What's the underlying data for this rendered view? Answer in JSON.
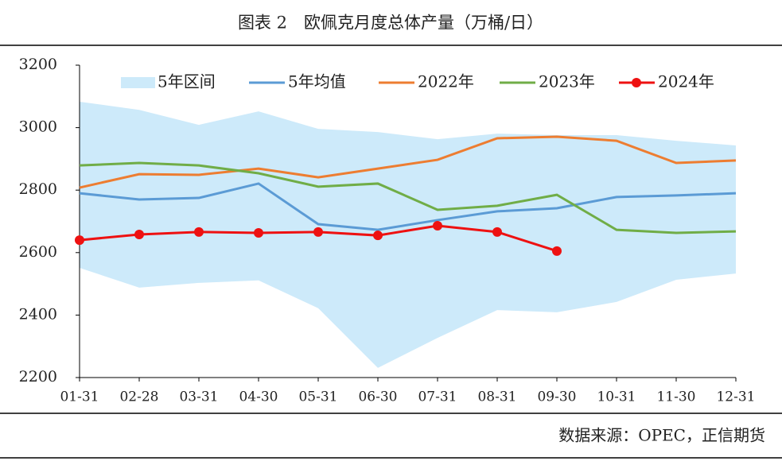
{
  "chart_data": {
    "type": "line",
    "title": "图表 2　欧佩克月度总体产量（万桶/日）",
    "source": "数据来源：OPEC，正信期货",
    "categories": [
      "01-31",
      "02-28",
      "03-31",
      "04-30",
      "05-31",
      "06-30",
      "07-31",
      "08-31",
      "09-30",
      "10-31",
      "11-30",
      "12-31"
    ],
    "ylim": [
      2200,
      3200
    ],
    "yticks": [
      2200,
      2400,
      2600,
      2800,
      3000,
      3200
    ],
    "band": {
      "name": "5年区间",
      "color": "#cdeafa",
      "values": [
        3083,
        3057,
        3009,
        3052,
        2996,
        2986,
        2963,
        2981,
        2976,
        2976,
        2958,
        2943
      ],
      "lower": [
        2551,
        2488,
        2503,
        2511,
        2422,
        2231,
        2327,
        2416,
        2409,
        2442,
        2513,
        2533
      ]
    },
    "series": [
      {
        "name": "5年均值",
        "color": "#5b9bd5",
        "values": [
          2790,
          2770,
          2775,
          2821,
          2691,
          2673,
          2704,
          2732,
          2742,
          2778,
          2783,
          2790
        ]
      },
      {
        "name": "2022年",
        "color": "#ed7d31",
        "values": [
          2808,
          2851,
          2849,
          2869,
          2841,
          2869,
          2897,
          2966,
          2971,
          2958,
          2887,
          2895
        ]
      },
      {
        "name": "2023年",
        "color": "#70ad47",
        "values": [
          2879,
          2887,
          2879,
          2854,
          2811,
          2821,
          2737,
          2750,
          2785,
          2673,
          2663,
          2668
        ]
      },
      {
        "name": "2024年",
        "color": "#ee1111",
        "markers": true,
        "values": [
          2640,
          2658,
          2666,
          2663,
          2666,
          2655,
          2686,
          2666,
          2605,
          null,
          null,
          null
        ]
      }
    ]
  }
}
